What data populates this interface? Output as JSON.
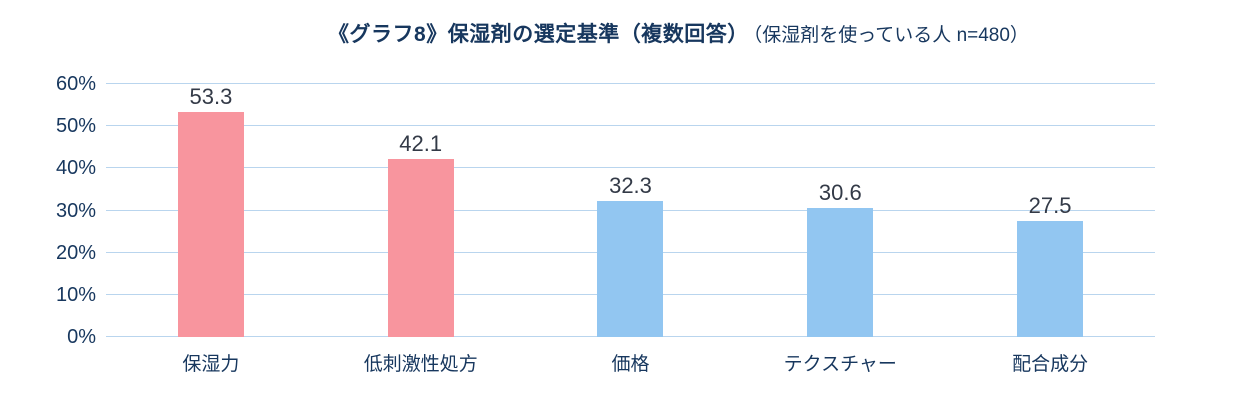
{
  "chart": {
    "title_main": "《グラフ8》保湿剤の選定基準（複数回答）",
    "title_sub": "（保湿剤を使っている人  n=480）"
  },
  "chart_data": {
    "type": "bar",
    "title": "《グラフ8》保湿剤の選定基準（複数回答）（保湿剤を使っている人 n=480）",
    "categories": [
      "保湿力",
      "低刺激性処方",
      "価格",
      "テクスチャー",
      "配合成分"
    ],
    "values": [
      53.3,
      42.1,
      32.3,
      30.6,
      27.5
    ],
    "value_labels": [
      "53.3",
      "42.1",
      "32.3",
      "30.6",
      "27.5"
    ],
    "bar_colors": [
      "#f8959e",
      "#f8959e",
      "#92c6f1",
      "#92c6f1",
      "#92c6f1"
    ],
    "ylim": [
      0,
      60
    ],
    "yticks": [
      0,
      10,
      20,
      30,
      40,
      50,
      60
    ],
    "ytick_suffix": "%",
    "grid": true,
    "legend": false
  },
  "colors": {
    "pink": "#f8959e",
    "blue": "#92c6f1",
    "gridline": "#b9d5ee",
    "text_navy": "#17375e",
    "value_label": "#333a47"
  }
}
